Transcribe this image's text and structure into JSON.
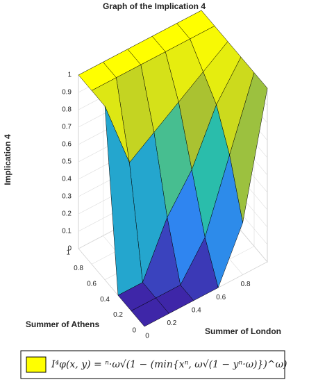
{
  "chart_data": {
    "type": "surface3d",
    "title": "Graph of the Implication 4",
    "xlabel": "Summer of London",
    "ylabel": "Summer of Athens",
    "zlabel": "Implication 4",
    "legend_label": "I⁴φ(x, y) = ⁿ·ω√(1 − (min{xⁿ, ω√(1 − yⁿ·ω)})^ω)",
    "color": "#ffff00",
    "edge_color": "#000000",
    "grid": true,
    "x": [
      0,
      0.2,
      0.4,
      0.6,
      0.8,
      1
    ],
    "y": [
      0,
      0.2,
      0.4,
      0.6,
      0.8,
      1
    ],
    "z": [
      [
        0,
        0,
        0,
        0,
        0.3,
        1
      ],
      [
        0,
        0,
        0,
        0.2,
        0.6,
        1
      ],
      [
        0,
        0,
        0.3,
        0.5,
        0.8,
        1
      ],
      [
        1,
        0.6,
        0.7,
        0.8,
        0.9,
        1
      ],
      [
        1,
        1,
        1,
        1,
        1,
        1
      ],
      [
        1,
        1,
        1,
        1,
        1,
        1
      ]
    ],
    "xlim": [
      0,
      1
    ],
    "xticks": [
      0,
      0.2,
      0.4,
      0.6,
      0.8
    ],
    "ylim": [
      0,
      1
    ],
    "yticks": [
      0,
      0.2,
      0.4,
      0.6,
      0.8,
      1
    ],
    "zlim": [
      0,
      1
    ],
    "zticks": [
      0,
      0.1,
      0.2,
      0.3,
      0.4,
      0.5,
      0.6,
      0.7,
      0.8,
      0.9,
      1
    ]
  }
}
